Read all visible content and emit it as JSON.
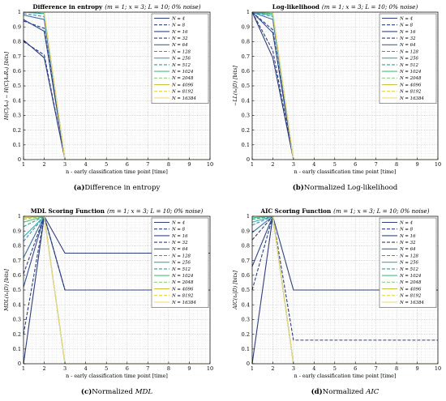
{
  "palette": [
    "#2c3e7e",
    "#2c3e7e",
    "#2f4a8e",
    "#2c3e7e",
    "#3a6fa6",
    "#3f8dbb",
    "#2eb0b0",
    "#26a38a",
    "#4cbf78",
    "#8fd07a",
    "#c8c23a",
    "#e7d23d",
    "#f0d98a",
    "#f2b3a8"
  ],
  "dashes": [
    "",
    "4 2",
    "",
    "4 2",
    "",
    "4 2",
    "",
    "4 2",
    "",
    "4 2",
    "",
    "4 2",
    "",
    ""
  ],
  "chart_data": [
    {
      "type": "line",
      "title": "Difference in entropy",
      "title_params": "(m = 1; x = 3; L = 10; 0% noise)",
      "xlabel": "n - early classification time point [time]",
      "ylabel": "H(C|Aₙ) − H(C|AₙRₙ) [bits]",
      "caption_label": "(a)",
      "caption_text": "Difference in entropy",
      "caption_italic": "",
      "xlim": [
        1,
        10
      ],
      "ylim": [
        0,
        1
      ],
      "x": [
        1,
        2,
        3,
        4,
        5,
        6,
        7,
        8,
        9,
        10
      ],
      "series": [
        {
          "name": "N = 4",
          "values": [
            0.81,
            0.69,
            0,
            0,
            0,
            0,
            0,
            0,
            0,
            0
          ]
        },
        {
          "name": "N = 8",
          "values": [
            0.8,
            0.71,
            0,
            0,
            0,
            0,
            0,
            0,
            0,
            0
          ]
        },
        {
          "name": "N = 16",
          "values": [
            0.95,
            0.87,
            0,
            0,
            0,
            0,
            0,
            0,
            0,
            0
          ]
        },
        {
          "name": "N = 32",
          "values": [
            0.94,
            0.89,
            0,
            0,
            0,
            0,
            0,
            0,
            0,
            0
          ]
        },
        {
          "name": "N = 64",
          "values": [
            0.98,
            0.95,
            0,
            0,
            0,
            0,
            0,
            0,
            0,
            0
          ]
        },
        {
          "name": "N = 128",
          "values": [
            0.99,
            0.97,
            0,
            0,
            0,
            0,
            0,
            0,
            0,
            0
          ]
        },
        {
          "name": "N = 256",
          "values": [
            1,
            0.99,
            0,
            0,
            0,
            0,
            0,
            0,
            0,
            0
          ]
        },
        {
          "name": "N = 512",
          "values": [
            1,
            0.99,
            0,
            0,
            0,
            0,
            0,
            0,
            0,
            0
          ]
        },
        {
          "name": "N = 1024",
          "values": [
            1,
            1,
            0,
            0,
            0,
            0,
            0,
            0,
            0,
            0
          ]
        },
        {
          "name": "N = 2048",
          "values": [
            1,
            1,
            0,
            0,
            0,
            0,
            0,
            0,
            0,
            0
          ]
        },
        {
          "name": "N = 4096",
          "values": [
            1,
            1,
            0,
            0,
            0,
            0,
            0,
            0,
            0,
            0
          ]
        },
        {
          "name": "N = 8192",
          "values": [
            1,
            1,
            0,
            0,
            0,
            0,
            0,
            0,
            0,
            0
          ]
        },
        {
          "name": "N = 16384",
          "values": [
            1,
            1,
            0,
            0,
            0,
            0,
            0,
            0,
            0,
            0
          ]
        }
      ],
      "legend": "top-right",
      "grid": true
    },
    {
      "type": "line",
      "title": "Log-likelihood",
      "title_params": "(m = 1; x = 3; L = 10; 0% noise)",
      "xlabel": "n - early classification time point [time]",
      "ylabel": "−LL(ℓₙ|D) [bits]",
      "caption_label": "(b)",
      "caption_text": "Normalized Log-likelihood",
      "caption_italic": "",
      "xlim": [
        1,
        10
      ],
      "ylim": [
        0,
        1
      ],
      "x": [
        1,
        2,
        3,
        4,
        5,
        6,
        7,
        8,
        9,
        10
      ],
      "series": [
        {
          "name": "N = 4",
          "values": [
            1,
            0.69,
            0,
            0,
            0,
            0,
            0,
            0,
            0,
            0
          ]
        },
        {
          "name": "N = 8",
          "values": [
            1,
            0.74,
            0,
            0,
            0,
            0,
            0,
            0,
            0,
            0
          ]
        },
        {
          "name": "N = 16",
          "values": [
            1,
            0.86,
            0,
            0,
            0,
            0,
            0,
            0,
            0,
            0
          ]
        },
        {
          "name": "N = 32",
          "values": [
            1,
            0.88,
            0,
            0,
            0,
            0,
            0,
            0,
            0,
            0
          ]
        },
        {
          "name": "N = 64",
          "values": [
            1,
            0.95,
            0,
            0,
            0,
            0,
            0,
            0,
            0,
            0
          ]
        },
        {
          "name": "N = 128",
          "values": [
            1,
            0.97,
            0,
            0,
            0,
            0,
            0,
            0,
            0,
            0
          ]
        },
        {
          "name": "N = 256",
          "values": [
            1,
            0.98,
            0,
            0,
            0,
            0,
            0,
            0,
            0,
            0
          ]
        },
        {
          "name": "N = 512",
          "values": [
            1,
            0.99,
            0,
            0,
            0,
            0,
            0,
            0,
            0,
            0
          ]
        },
        {
          "name": "N = 1024",
          "values": [
            1,
            0.99,
            0,
            0,
            0,
            0,
            0,
            0,
            0,
            0
          ]
        },
        {
          "name": "N = 2048",
          "values": [
            1,
            1,
            0,
            0,
            0,
            0,
            0,
            0,
            0,
            0
          ]
        },
        {
          "name": "N = 4096",
          "values": [
            1,
            1,
            0,
            0,
            0,
            0,
            0,
            0,
            0,
            0
          ]
        },
        {
          "name": "N = 8192",
          "values": [
            1,
            1,
            0,
            0,
            0,
            0,
            0,
            0,
            0,
            0
          ]
        },
        {
          "name": "N = 16384",
          "values": [
            1,
            1,
            0,
            0,
            0,
            0,
            0,
            0,
            0,
            0
          ]
        }
      ],
      "legend": "top-right",
      "grid": true
    },
    {
      "type": "line",
      "title": "MDL Scoring Function",
      "title_params": "(m = 1; x = 3; L = 10; 0% noise)",
      "xlabel": "n - early classification time point [time]",
      "ylabel": "MDL(ℓₙ|D) [bits]",
      "caption_label": "(c)",
      "caption_text": "Normalized ",
      "caption_italic": "MDL",
      "xlim": [
        1,
        10
      ],
      "ylim": [
        0,
        1
      ],
      "x": [
        1,
        2,
        3,
        4,
        5,
        6,
        7,
        8,
        9,
        10
      ],
      "series": [
        {
          "name": "N = 4",
          "values": [
            0,
            1,
            0.75,
            0.75,
            0.75,
            0.75,
            0.75,
            0.75,
            0.75,
            0.75
          ]
        },
        {
          "name": "N = 8",
          "values": [
            0.2,
            1,
            0.5,
            0.5,
            0.5,
            0.5,
            0.5,
            0.5,
            0.5,
            0.5
          ]
        },
        {
          "name": "N = 16",
          "values": [
            0.52,
            1,
            0.5,
            0.5,
            0.5,
            0.5,
            0.5,
            0.5,
            0.5,
            0.5
          ]
        },
        {
          "name": "N = 32",
          "values": [
            0.61,
            1,
            0.5,
            0.5,
            0.5,
            0.5,
            0.5,
            0.5,
            0.5,
            0.5
          ]
        },
        {
          "name": "N = 64",
          "values": [
            0.72,
            1,
            0,
            0,
            0,
            0,
            0,
            0,
            0,
            0
          ]
        },
        {
          "name": "N = 128",
          "values": [
            0.83,
            1,
            0,
            0,
            0,
            0,
            0,
            0,
            0,
            0
          ]
        },
        {
          "name": "N = 256",
          "values": [
            0.86,
            1,
            0,
            0,
            0,
            0,
            0,
            0,
            0,
            0
          ]
        },
        {
          "name": "N = 512",
          "values": [
            0.93,
            1,
            0,
            0,
            0,
            0,
            0,
            0,
            0,
            0
          ]
        },
        {
          "name": "N = 1024",
          "values": [
            0.96,
            1,
            0,
            0,
            0,
            0,
            0,
            0,
            0,
            0
          ]
        },
        {
          "name": "N = 2048",
          "values": [
            0.98,
            1,
            0,
            0,
            0,
            0,
            0,
            0,
            0,
            0
          ]
        },
        {
          "name": "N = 4096",
          "values": [
            0.99,
            1,
            0,
            0,
            0,
            0,
            0,
            0,
            0,
            0
          ]
        },
        {
          "name": "N = 8192",
          "values": [
            1,
            1,
            0,
            0,
            0,
            0,
            0,
            0,
            0,
            0
          ]
        },
        {
          "name": "N = 16384",
          "values": [
            1,
            1,
            0,
            0,
            0,
            0,
            0,
            0,
            0,
            0
          ]
        }
      ],
      "legend": "top-right",
      "grid": true
    },
    {
      "type": "line",
      "title": "AIC Scoring Function",
      "title_params": "(m = 1; x = 3; L = 10; 0% noise)",
      "xlabel": "n - early classification time point [time]",
      "ylabel": "AIC(ℓₙ|D) [bits]",
      "caption_label": "(d)",
      "caption_text": "Normalized ",
      "caption_italic": "AIC",
      "xlim": [
        1,
        10
      ],
      "ylim": [
        0,
        1
      ],
      "x": [
        1,
        2,
        3,
        4,
        5,
        6,
        7,
        8,
        9,
        10
      ],
      "series": [
        {
          "name": "N = 4",
          "values": [
            0,
            1,
            0.5,
            0.5,
            0.5,
            0.5,
            0.5,
            0.5,
            0.5,
            0.5
          ]
        },
        {
          "name": "N = 8",
          "values": [
            0.5,
            1,
            0.16,
            0.16,
            0.16,
            0.16,
            0.16,
            0.16,
            0.16,
            0.16
          ]
        },
        {
          "name": "N = 16",
          "values": [
            0.66,
            1,
            0,
            0,
            0,
            0,
            0,
            0,
            0,
            0
          ]
        },
        {
          "name": "N = 32",
          "values": [
            0.84,
            1,
            0,
            0,
            0,
            0,
            0,
            0,
            0,
            0
          ]
        },
        {
          "name": "N = 64",
          "values": [
            0.89,
            1,
            0,
            0,
            0,
            0,
            0,
            0,
            0,
            0
          ]
        },
        {
          "name": "N = 128",
          "values": [
            0.94,
            1,
            0,
            0,
            0,
            0,
            0,
            0,
            0,
            0
          ]
        },
        {
          "name": "N = 256",
          "values": [
            0.96,
            1,
            0,
            0,
            0,
            0,
            0,
            0,
            0,
            0
          ]
        },
        {
          "name": "N = 512",
          "values": [
            0.98,
            1,
            0,
            0,
            0,
            0,
            0,
            0,
            0,
            0
          ]
        },
        {
          "name": "N = 1024",
          "values": [
            0.99,
            1,
            0,
            0,
            0,
            0,
            0,
            0,
            0,
            0
          ]
        },
        {
          "name": "N = 2048",
          "values": [
            1,
            1,
            0,
            0,
            0,
            0,
            0,
            0,
            0,
            0
          ]
        },
        {
          "name": "N = 4096",
          "values": [
            1,
            1,
            0,
            0,
            0,
            0,
            0,
            0,
            0,
            0
          ]
        },
        {
          "name": "N = 8192",
          "values": [
            1,
            1,
            0,
            0,
            0,
            0,
            0,
            0,
            0,
            0
          ]
        },
        {
          "name": "N = 16384",
          "values": [
            1,
            1,
            0,
            0,
            0,
            0,
            0,
            0,
            0,
            0
          ]
        }
      ],
      "legend": "top-right",
      "grid": true
    }
  ]
}
